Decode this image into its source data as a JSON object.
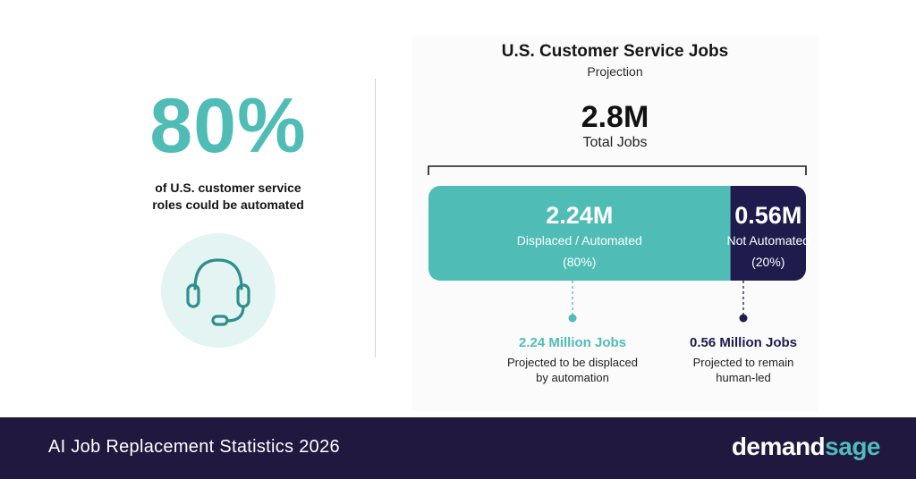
{
  "left_stat": {
    "percent": "80%",
    "caption_line1": "of U.S. customer service",
    "caption_line2": "roles could be automated",
    "icon": "headset-icon"
  },
  "chart_data": {
    "type": "bar",
    "title": "U.S. Customer Service Jobs",
    "subtitle": "Projection",
    "total": {
      "value": "2.8M",
      "label": "Total Jobs"
    },
    "units": "millions of jobs",
    "segments": [
      {
        "value": 2.24,
        "value_label": "2.24M",
        "label": "Displaced / Automated",
        "percent": 80,
        "percent_label": "(80%)",
        "color": "#4fbdb6",
        "note_title": "2.24 Million Jobs",
        "note_line1": "Projected to be displaced",
        "note_line2": "by automation"
      },
      {
        "value": 0.56,
        "value_label": "0.56M",
        "label": "Not Automated",
        "percent": 20,
        "percent_label": "(20%)",
        "color": "#1f1b4d",
        "note_title": "0.56 Million Jobs",
        "note_line1": "Projected to remain",
        "note_line2": "human-led"
      }
    ]
  },
  "footer": {
    "title": "AI Job Replacement Statistics 2026",
    "brand_part1": "demand",
    "brand_part2": "sage"
  },
  "colors": {
    "accent": "#4fbdb6",
    "dark": "#1f1b4d",
    "footer_bg": "#21183f",
    "icon_bg": "#e4f4f3"
  }
}
